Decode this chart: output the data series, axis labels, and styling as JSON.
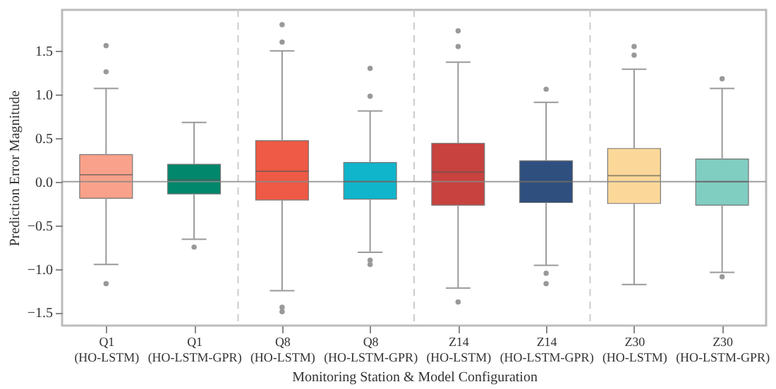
{
  "chart_data": {
    "type": "box",
    "xlabel": "Monitoring Station & Model Configuration",
    "ylabel": "Prediction Error Magnitude",
    "categories": [
      "Q1\n(HO-LSTM)",
      "Q1\n(HO-LSTM-GPR)",
      "Q8\n(HO-LSTM)",
      "Q8\n(HO-LSTM-GPR)",
      "Z14\n(HO-LSTM)",
      "Z14\n(HO-LSTM-GPR)",
      "Z30\n(HO-LSTM)",
      "Z30\n(HO-LSTM-GPR)"
    ],
    "colors": [
      "#f9a18a",
      "#00876c",
      "#ee5a45",
      "#10b5cc",
      "#c8423f",
      "#2f4f7f",
      "#fbd899",
      "#80cdc1"
    ],
    "boxes": [
      {
        "low": -0.95,
        "q1": -0.19,
        "median": 0.08,
        "q3": 0.31,
        "high": 1.07,
        "outliers": [
          1.56,
          1.26,
          -1.17
        ]
      },
      {
        "low": -0.66,
        "q1": -0.14,
        "median": 0.02,
        "q3": 0.2,
        "high": 0.68,
        "outliers": [
          -0.75
        ]
      },
      {
        "low": -1.25,
        "q1": -0.21,
        "median": 0.12,
        "q3": 0.47,
        "high": 1.5,
        "outliers": [
          1.8,
          1.6,
          -1.44,
          -1.49
        ]
      },
      {
        "low": -0.81,
        "q1": -0.2,
        "median": 0.0,
        "q3": 0.22,
        "high": 0.81,
        "outliers": [
          0.98,
          1.3,
          -0.9,
          -0.95
        ]
      },
      {
        "low": -1.22,
        "q1": -0.27,
        "median": 0.11,
        "q3": 0.44,
        "high": 1.37,
        "outliers": [
          1.73,
          1.55,
          -1.38
        ]
      },
      {
        "low": -0.96,
        "q1": -0.24,
        "median": 0.0,
        "q3": 0.24,
        "high": 0.91,
        "outliers": [
          1.06,
          -1.05,
          -1.17
        ]
      },
      {
        "low": -1.18,
        "q1": -0.25,
        "median": 0.07,
        "q3": 0.38,
        "high": 1.29,
        "outliers": [
          1.55,
          1.45
        ]
      },
      {
        "low": -1.04,
        "q1": -0.27,
        "median": 0.0,
        "q3": 0.26,
        "high": 1.07,
        "outliers": [
          1.18,
          -1.09
        ]
      }
    ],
    "ylim": [
      -1.65,
      1.97
    ],
    "yticks": [
      {
        "value": -1.5,
        "label": "−1.5"
      },
      {
        "value": -1,
        "label": "−1.0"
      },
      {
        "value": -0.5,
        "label": "−0.5"
      },
      {
        "value": 0,
        "label": "0.0"
      },
      {
        "value": 0.5,
        "label": "0.5"
      },
      {
        "value": 1,
        "label": "1.0"
      },
      {
        "value": 1.5,
        "label": "1.5"
      }
    ],
    "ref_lines": [
      {
        "axis": "y",
        "value": 0,
        "color": "#888888",
        "line_style": "solid"
      }
    ],
    "grid": false
  }
}
